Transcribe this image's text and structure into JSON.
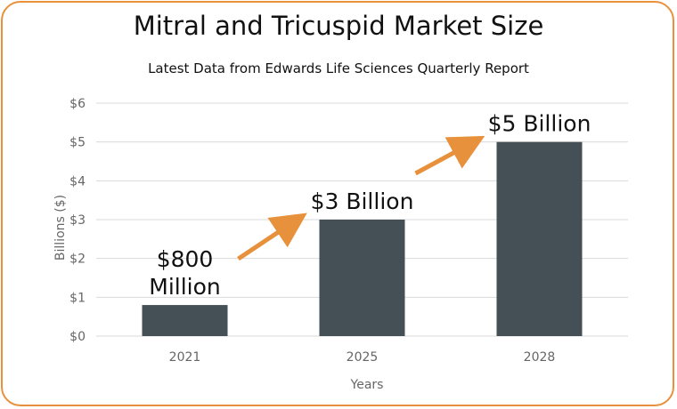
{
  "chart_data": {
    "type": "bar",
    "title": "Mitral and Tricuspid Market Size",
    "subtitle": "Latest Data from Edwards Life Sciences Quarterly Report",
    "xlabel": "Years",
    "ylabel": "Billions ($)",
    "categories": [
      "2021",
      "2025",
      "2028"
    ],
    "values": [
      0.8,
      3,
      5
    ],
    "data_labels": [
      [
        "$800",
        "Million"
      ],
      [
        "$3 Billion"
      ],
      [
        "$5 Billion"
      ]
    ],
    "ylim": [
      0,
      6
    ],
    "y_ticks": [
      0,
      1,
      2,
      3,
      4,
      5,
      6
    ],
    "y_tick_labels": [
      "$0",
      "$1",
      "$2",
      "$3",
      "$4",
      "$5",
      "$6"
    ],
    "grid": true,
    "legend": "none",
    "colors": {
      "bar": "#454f56",
      "arrow": "#e8913c",
      "frame": "#e8913c",
      "grid": "#d9d9d9"
    }
  }
}
